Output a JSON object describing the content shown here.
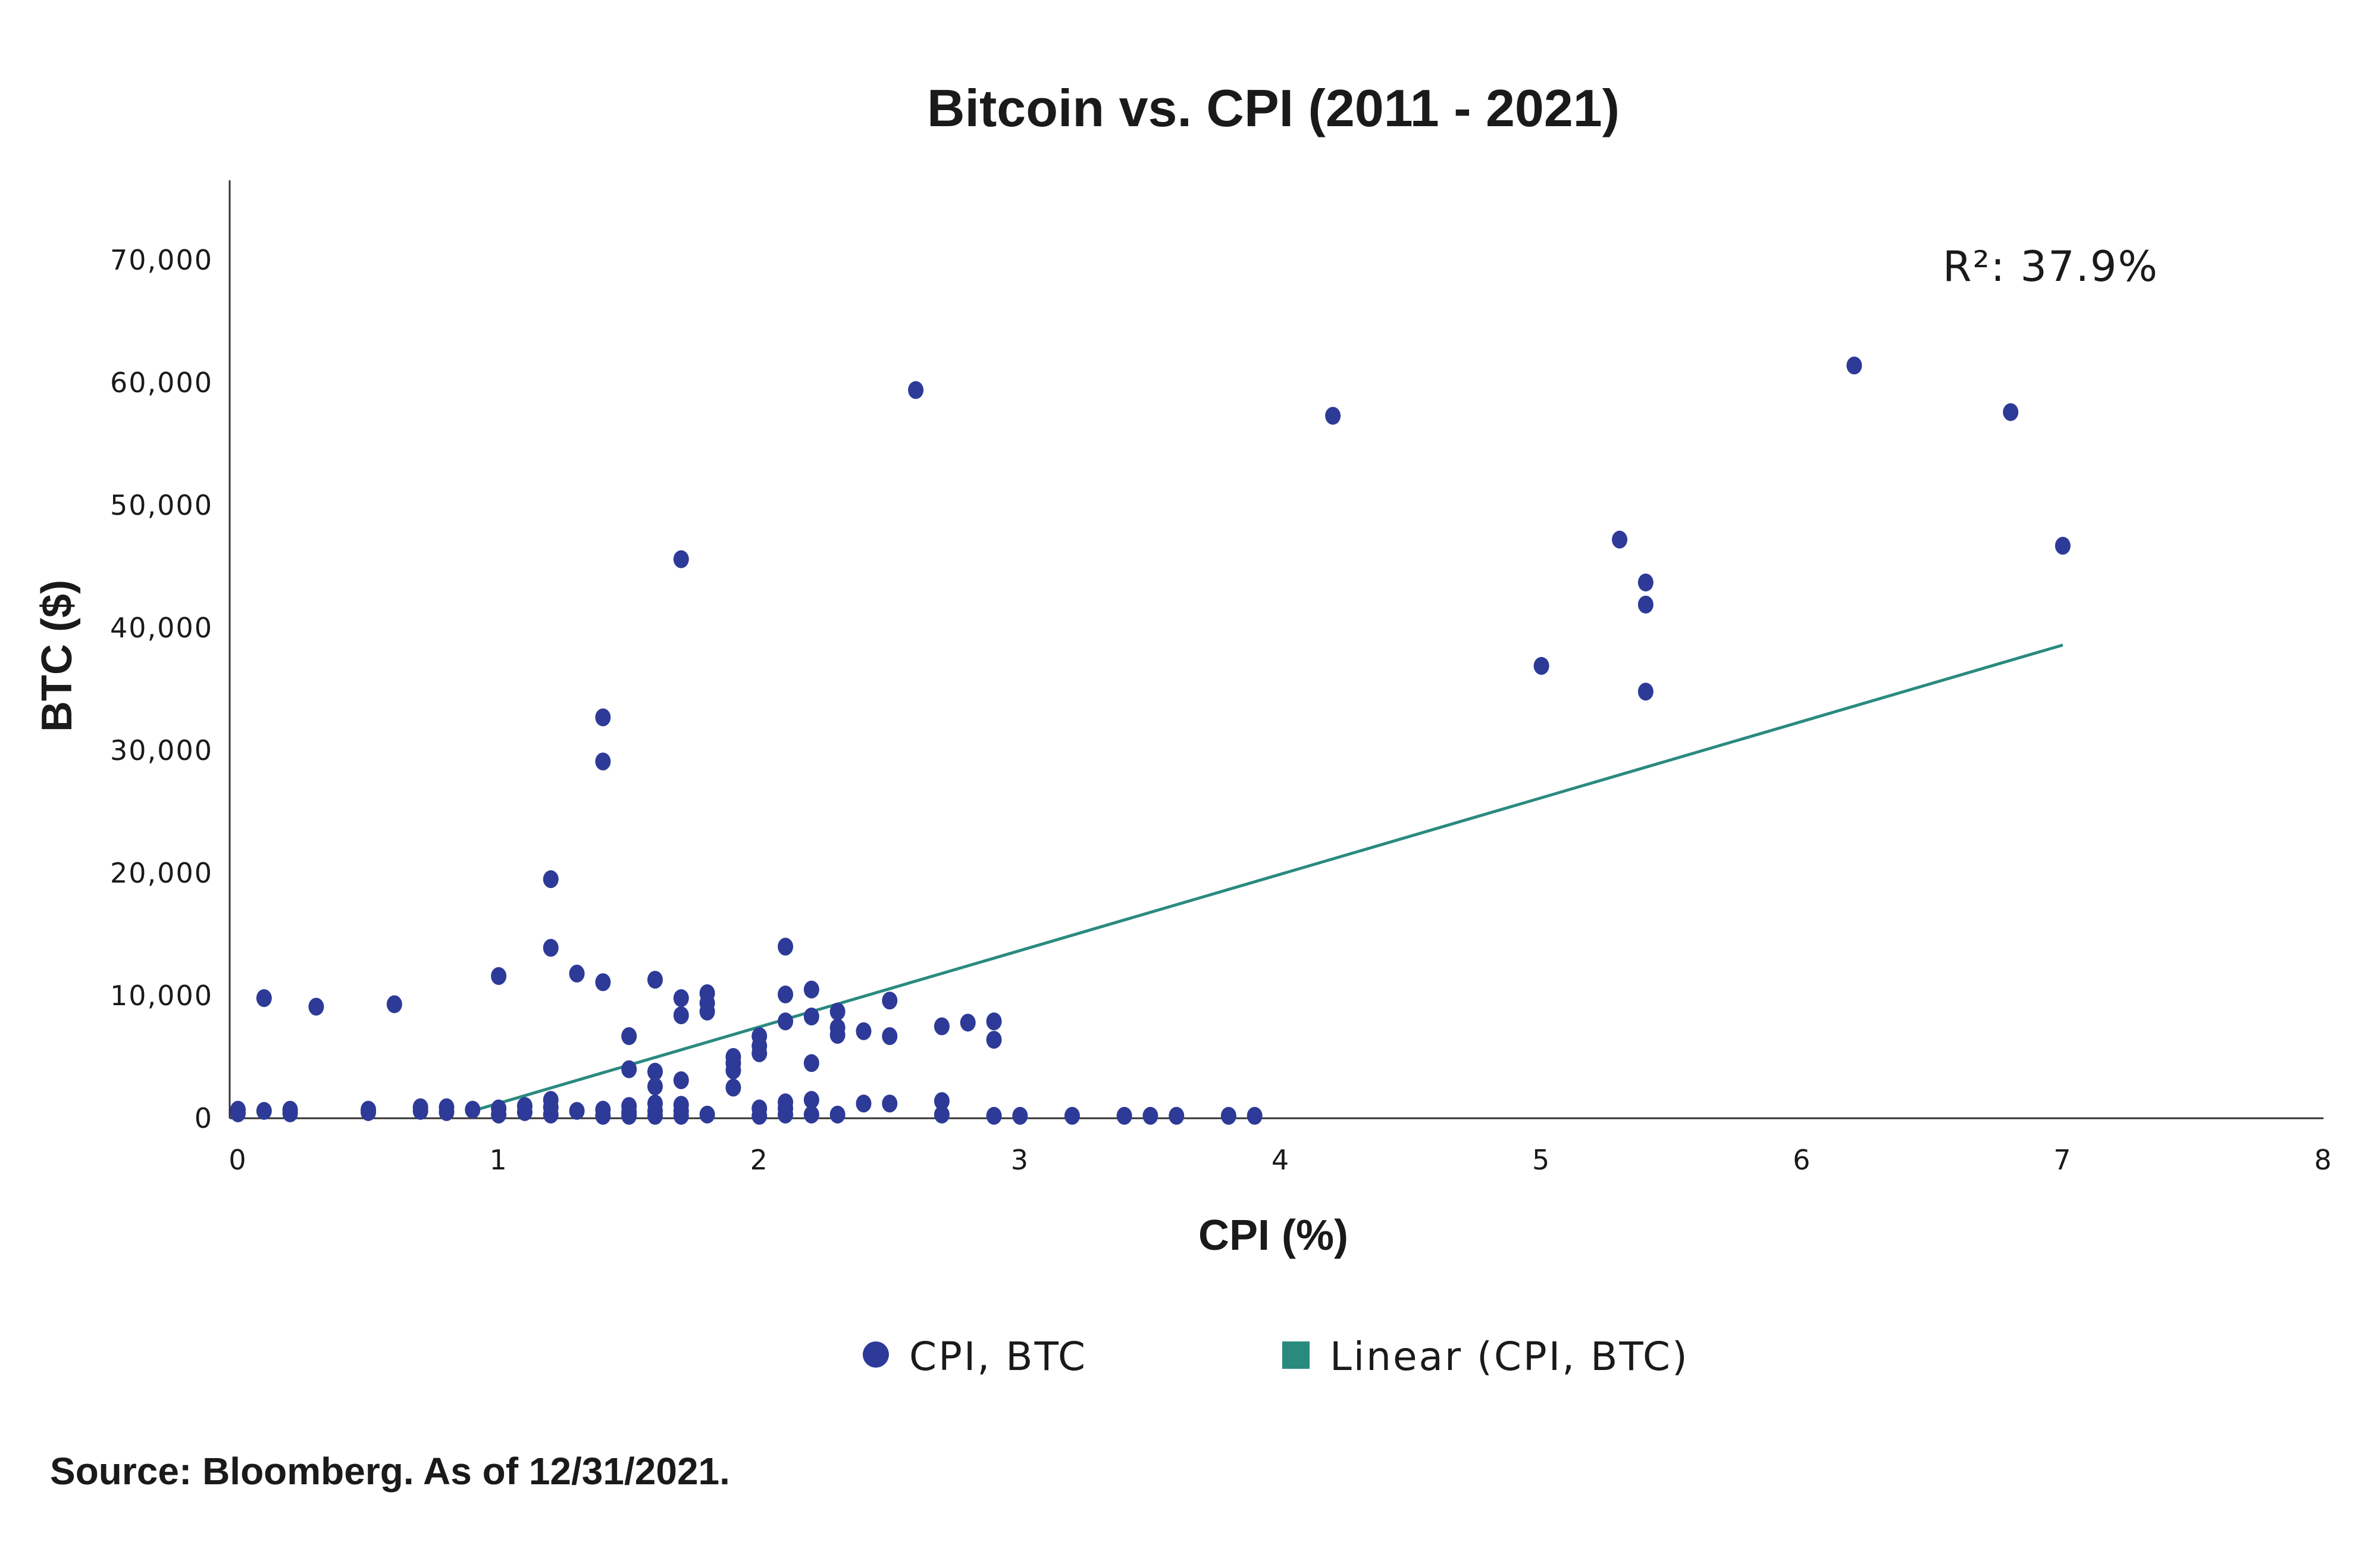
{
  "chart_data": {
    "type": "scatter",
    "title": "Bitcoin vs. CPI (2011 - 2021)",
    "xlabel": "CPI (%)",
    "ylabel": "BTC ($)",
    "xlim": [
      0,
      8
    ],
    "ylim": [
      0,
      76000
    ],
    "x_ticks": [
      0,
      1,
      2,
      3,
      4,
      5,
      6,
      7,
      8
    ],
    "x_tick_labels": [
      "0",
      "1",
      "2",
      "3",
      "4",
      "5",
      "6",
      "7",
      "8"
    ],
    "y_ticks": [
      0,
      10000,
      20000,
      30000,
      40000,
      50000,
      60000,
      70000
    ],
    "y_tick_labels": [
      "0",
      "10,000",
      "20,000",
      "30,000",
      "40,000",
      "50,000",
      "60,000",
      "70,000"
    ],
    "grid": false,
    "series": [
      {
        "name": "CPI, BTC",
        "color": "#2d3a97",
        "points": [
          [
            0,
            400
          ],
          [
            0,
            700
          ],
          [
            0.1,
            600
          ],
          [
            0.1,
            9800
          ],
          [
            0.2,
            400
          ],
          [
            0.2,
            700
          ],
          [
            0.3,
            9100
          ],
          [
            0.5,
            500
          ],
          [
            0.5,
            700
          ],
          [
            0.6,
            9300
          ],
          [
            0.7,
            600
          ],
          [
            0.7,
            900
          ],
          [
            0.8,
            500
          ],
          [
            0.8,
            900
          ],
          [
            0.9,
            700
          ],
          [
            1.0,
            300
          ],
          [
            1.0,
            800
          ],
          [
            1.0,
            11600
          ],
          [
            1.1,
            500
          ],
          [
            1.1,
            1000
          ],
          [
            1.2,
            300
          ],
          [
            1.2,
            900
          ],
          [
            1.2,
            1500
          ],
          [
            1.2,
            13900
          ],
          [
            1.2,
            19500
          ],
          [
            1.3,
            600
          ],
          [
            1.3,
            11800
          ],
          [
            1.4,
            200
          ],
          [
            1.4,
            700
          ],
          [
            1.4,
            11100
          ],
          [
            1.4,
            29100
          ],
          [
            1.4,
            32700
          ],
          [
            1.5,
            200
          ],
          [
            1.5,
            500
          ],
          [
            1.5,
            1000
          ],
          [
            1.5,
            4000
          ],
          [
            1.5,
            6700
          ],
          [
            1.6,
            200
          ],
          [
            1.6,
            600
          ],
          [
            1.6,
            1200
          ],
          [
            1.6,
            2600
          ],
          [
            1.6,
            3800
          ],
          [
            1.6,
            11300
          ],
          [
            1.7,
            200
          ],
          [
            1.7,
            600
          ],
          [
            1.7,
            1100
          ],
          [
            1.7,
            3100
          ],
          [
            1.7,
            8400
          ],
          [
            1.7,
            9800
          ],
          [
            1.7,
            45600
          ],
          [
            1.8,
            300
          ],
          [
            1.8,
            8700
          ],
          [
            1.8,
            9400
          ],
          [
            1.8,
            10200
          ],
          [
            1.9,
            2500
          ],
          [
            1.9,
            3900
          ],
          [
            1.9,
            4500
          ],
          [
            1.9,
            5000
          ],
          [
            2.0,
            200
          ],
          [
            2.0,
            800
          ],
          [
            2.0,
            5300
          ],
          [
            2.0,
            5900
          ],
          [
            2.0,
            6700
          ],
          [
            2.1,
            300
          ],
          [
            2.1,
            800
          ],
          [
            2.1,
            1300
          ],
          [
            2.1,
            7900
          ],
          [
            2.1,
            10100
          ],
          [
            2.1,
            14000
          ],
          [
            2.2,
            300
          ],
          [
            2.2,
            1500
          ],
          [
            2.2,
            4500
          ],
          [
            2.2,
            8300
          ],
          [
            2.2,
            10500
          ],
          [
            2.3,
            300
          ],
          [
            2.3,
            6800
          ],
          [
            2.3,
            7400
          ],
          [
            2.3,
            8700
          ],
          [
            2.4,
            1200
          ],
          [
            2.4,
            7100
          ],
          [
            2.5,
            1200
          ],
          [
            2.5,
            6700
          ],
          [
            2.5,
            9600
          ],
          [
            2.6,
            59400
          ],
          [
            2.7,
            300
          ],
          [
            2.7,
            1400
          ],
          [
            2.7,
            7500
          ],
          [
            2.8,
            7800
          ],
          [
            2.9,
            200
          ],
          [
            2.9,
            6400
          ],
          [
            2.9,
            7900
          ],
          [
            3.0,
            200
          ],
          [
            3.2,
            200
          ],
          [
            3.4,
            200
          ],
          [
            3.5,
            200
          ],
          [
            3.6,
            200
          ],
          [
            3.8,
            200
          ],
          [
            3.9,
            200
          ],
          [
            4.2,
            57300
          ],
          [
            5.0,
            36900
          ],
          [
            5.3,
            47200
          ],
          [
            5.4,
            34800
          ],
          [
            5.4,
            41900
          ],
          [
            5.4,
            43700
          ],
          [
            6.2,
            61400
          ],
          [
            6.8,
            57600
          ],
          [
            7.0,
            46700
          ]
        ]
      },
      {
        "name": "Linear (CPI, BTC)",
        "color": "#2a8a7f",
        "type": "line",
        "points": [
          [
            0.9,
            600
          ],
          [
            7.0,
            38600
          ]
        ]
      }
    ],
    "annotation": "R²: 37.9%",
    "legend": [
      {
        "label": "CPI, BTC",
        "marker": "circle",
        "color": "#2d3a97"
      },
      {
        "label": "Linear (CPI, BTC)",
        "marker": "square",
        "color": "#2a8a7f"
      }
    ],
    "legend_position": "bottom"
  },
  "source": "Source: Bloomberg. As of 12/31/2021."
}
